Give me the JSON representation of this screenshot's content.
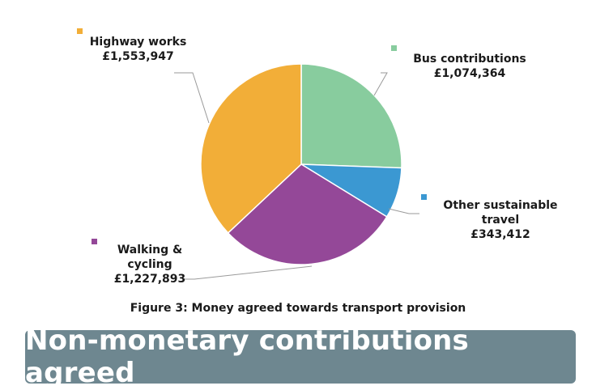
{
  "chart_data": {
    "type": "pie",
    "title": "Figure 3: Money agreed towards transport provision",
    "slices": [
      {
        "name": "Bus contributions",
        "label_lines": [
          "Bus contributions",
          "£1,074,364"
        ],
        "value": 1074364,
        "color": "#88cc9e"
      },
      {
        "name": "Other sustainable travel",
        "label_lines": [
          "Other sustainable",
          "travel",
          "£343,412"
        ],
        "value": 343412,
        "color": "#3b98d2"
      },
      {
        "name": "Walking & cycling",
        "label_lines": [
          "Walking &",
          "cycling",
          "£1,227,893"
        ],
        "value": 1227893,
        "color": "#944898"
      },
      {
        "name": "Highway works",
        "label_lines": [
          "Highway works",
          "£1,553,947"
        ],
        "value": 1553947,
        "color": "#f2ae38"
      }
    ],
    "legend": "none",
    "labels": "outside with leader lines"
  },
  "banner": {
    "title": "Non-monetary contributions agreed",
    "color": "#6e8790"
  }
}
